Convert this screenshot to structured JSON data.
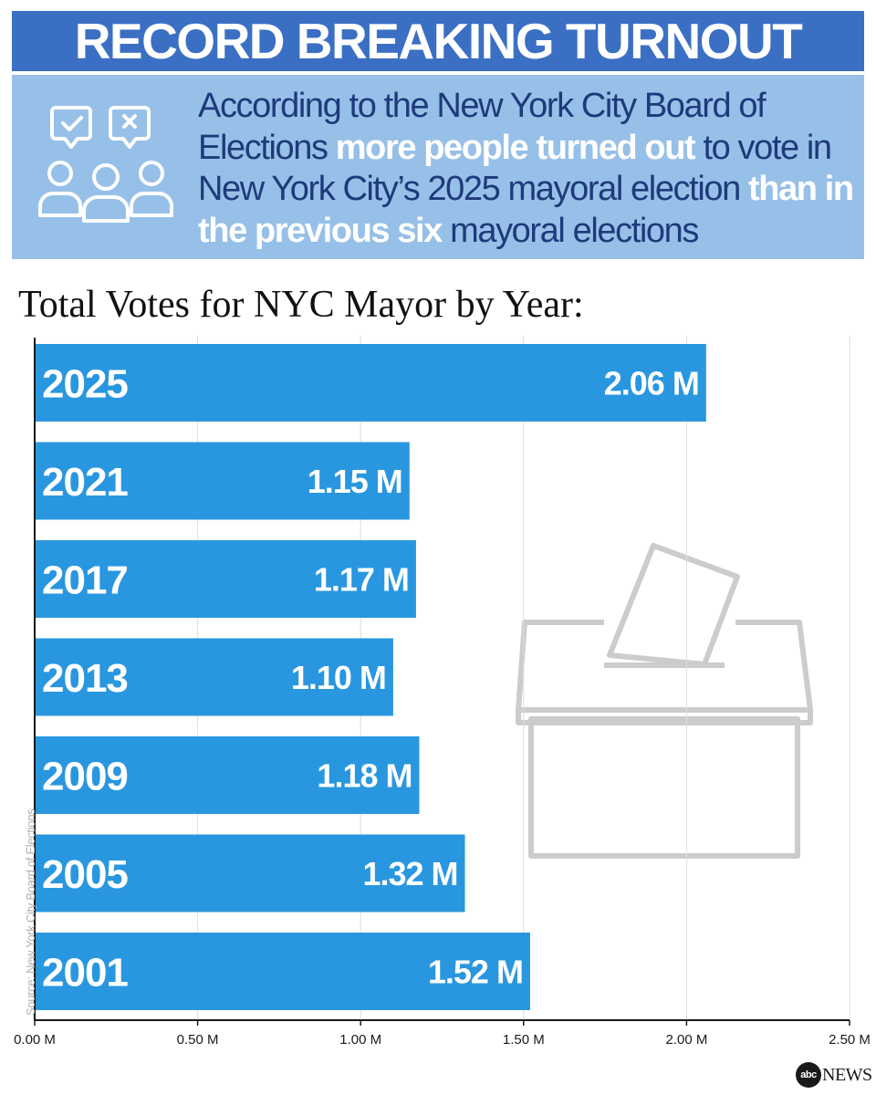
{
  "header": {
    "title": "RECORD BREAKING TURNOUT",
    "icon": "voting-people-icon",
    "intro_parts": [
      {
        "text": "According to the New York City Board of Elections ",
        "highlight": false
      },
      {
        "text": "more people turned out",
        "highlight": true
      },
      {
        "text": " to vote in New York City’s 2025 mayoral election ",
        "highlight": false
      },
      {
        "text": "than in the previous six",
        "highlight": true
      },
      {
        "text": " mayoral elections",
        "highlight": false
      }
    ]
  },
  "chart_data": {
    "type": "bar",
    "orientation": "horizontal",
    "title": "Total Votes for NYC Mayor by Year:",
    "categories": [
      "2025",
      "2021",
      "2017",
      "2013",
      "2009",
      "2005",
      "2001"
    ],
    "values": [
      2.06,
      1.15,
      1.17,
      1.1,
      1.18,
      1.32,
      1.52
    ],
    "value_labels": [
      "2.06 M",
      "1.15 M",
      "1.17 M",
      "1.10 M",
      "1.18 M",
      "1.32 M",
      "1.52 M"
    ],
    "unit": "M",
    "xlim": [
      0,
      2.5
    ],
    "xticks": [
      0,
      0.5,
      1.0,
      1.5,
      2.0,
      2.5
    ],
    "xtick_labels": [
      "0.00 M",
      "0.50 M",
      "1.00 M",
      "1.50 M",
      "2.00 M",
      "2.50 M"
    ],
    "grid": true
  },
  "decoration_icon": "ballot-box-icon",
  "source": "Source: New York City Board of Elections",
  "branding": {
    "logo_mark": "abc",
    "logo_word": "NEWS"
  },
  "colors": {
    "banner": "#3a6fc4",
    "intro_bg": "#97c0e8",
    "intro_text": "#1d3a7a",
    "bar": "#2997df",
    "icon": "#cccccc"
  }
}
